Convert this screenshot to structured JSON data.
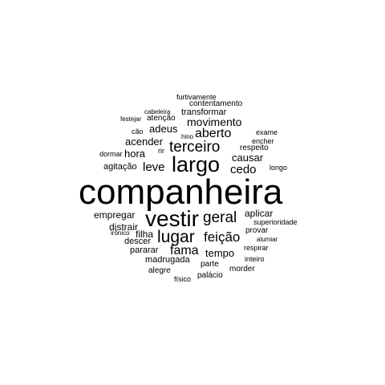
{
  "word_cloud": {
    "text_color": "#000000",
    "background": "#ffffff",
    "words": [
      {
        "text": "companheira"
      },
      {
        "text": "vestir"
      },
      {
        "text": "largo"
      },
      {
        "text": "lugar"
      },
      {
        "text": "terceiro"
      },
      {
        "text": "geral"
      },
      {
        "text": "feição"
      },
      {
        "text": "aberto"
      },
      {
        "text": "fama"
      },
      {
        "text": "movimento"
      },
      {
        "text": "leve"
      },
      {
        "text": "cedo"
      },
      {
        "text": "adeus"
      },
      {
        "text": "causar"
      },
      {
        "text": "acender"
      },
      {
        "text": "hora"
      },
      {
        "text": "tempo"
      },
      {
        "text": "empregar"
      },
      {
        "text": "aplicar"
      },
      {
        "text": "distrair"
      },
      {
        "text": "filha"
      },
      {
        "text": "agitação"
      },
      {
        "text": "madrugada"
      },
      {
        "text": "descer"
      },
      {
        "text": "pararar"
      },
      {
        "text": "transformar"
      },
      {
        "text": "respeito"
      },
      {
        "text": "provar"
      },
      {
        "text": "contentamento"
      },
      {
        "text": "atenção"
      },
      {
        "text": "superioridade"
      },
      {
        "text": "respirar"
      },
      {
        "text": "morder"
      },
      {
        "text": "alegre"
      },
      {
        "text": "parte"
      },
      {
        "text": "palácio"
      },
      {
        "text": "inteiro"
      },
      {
        "text": "alumiar"
      },
      {
        "text": "encher"
      },
      {
        "text": "exame"
      },
      {
        "text": "cão"
      },
      {
        "text": "dormar"
      },
      {
        "text": "rir"
      },
      {
        "text": "longo"
      },
      {
        "text": "festejar"
      },
      {
        "text": "cabeleira"
      },
      {
        "text": "furtivamente"
      },
      {
        "text": "hino"
      },
      {
        "text": "irônico"
      },
      {
        "text": "físico"
      }
    ]
  }
}
